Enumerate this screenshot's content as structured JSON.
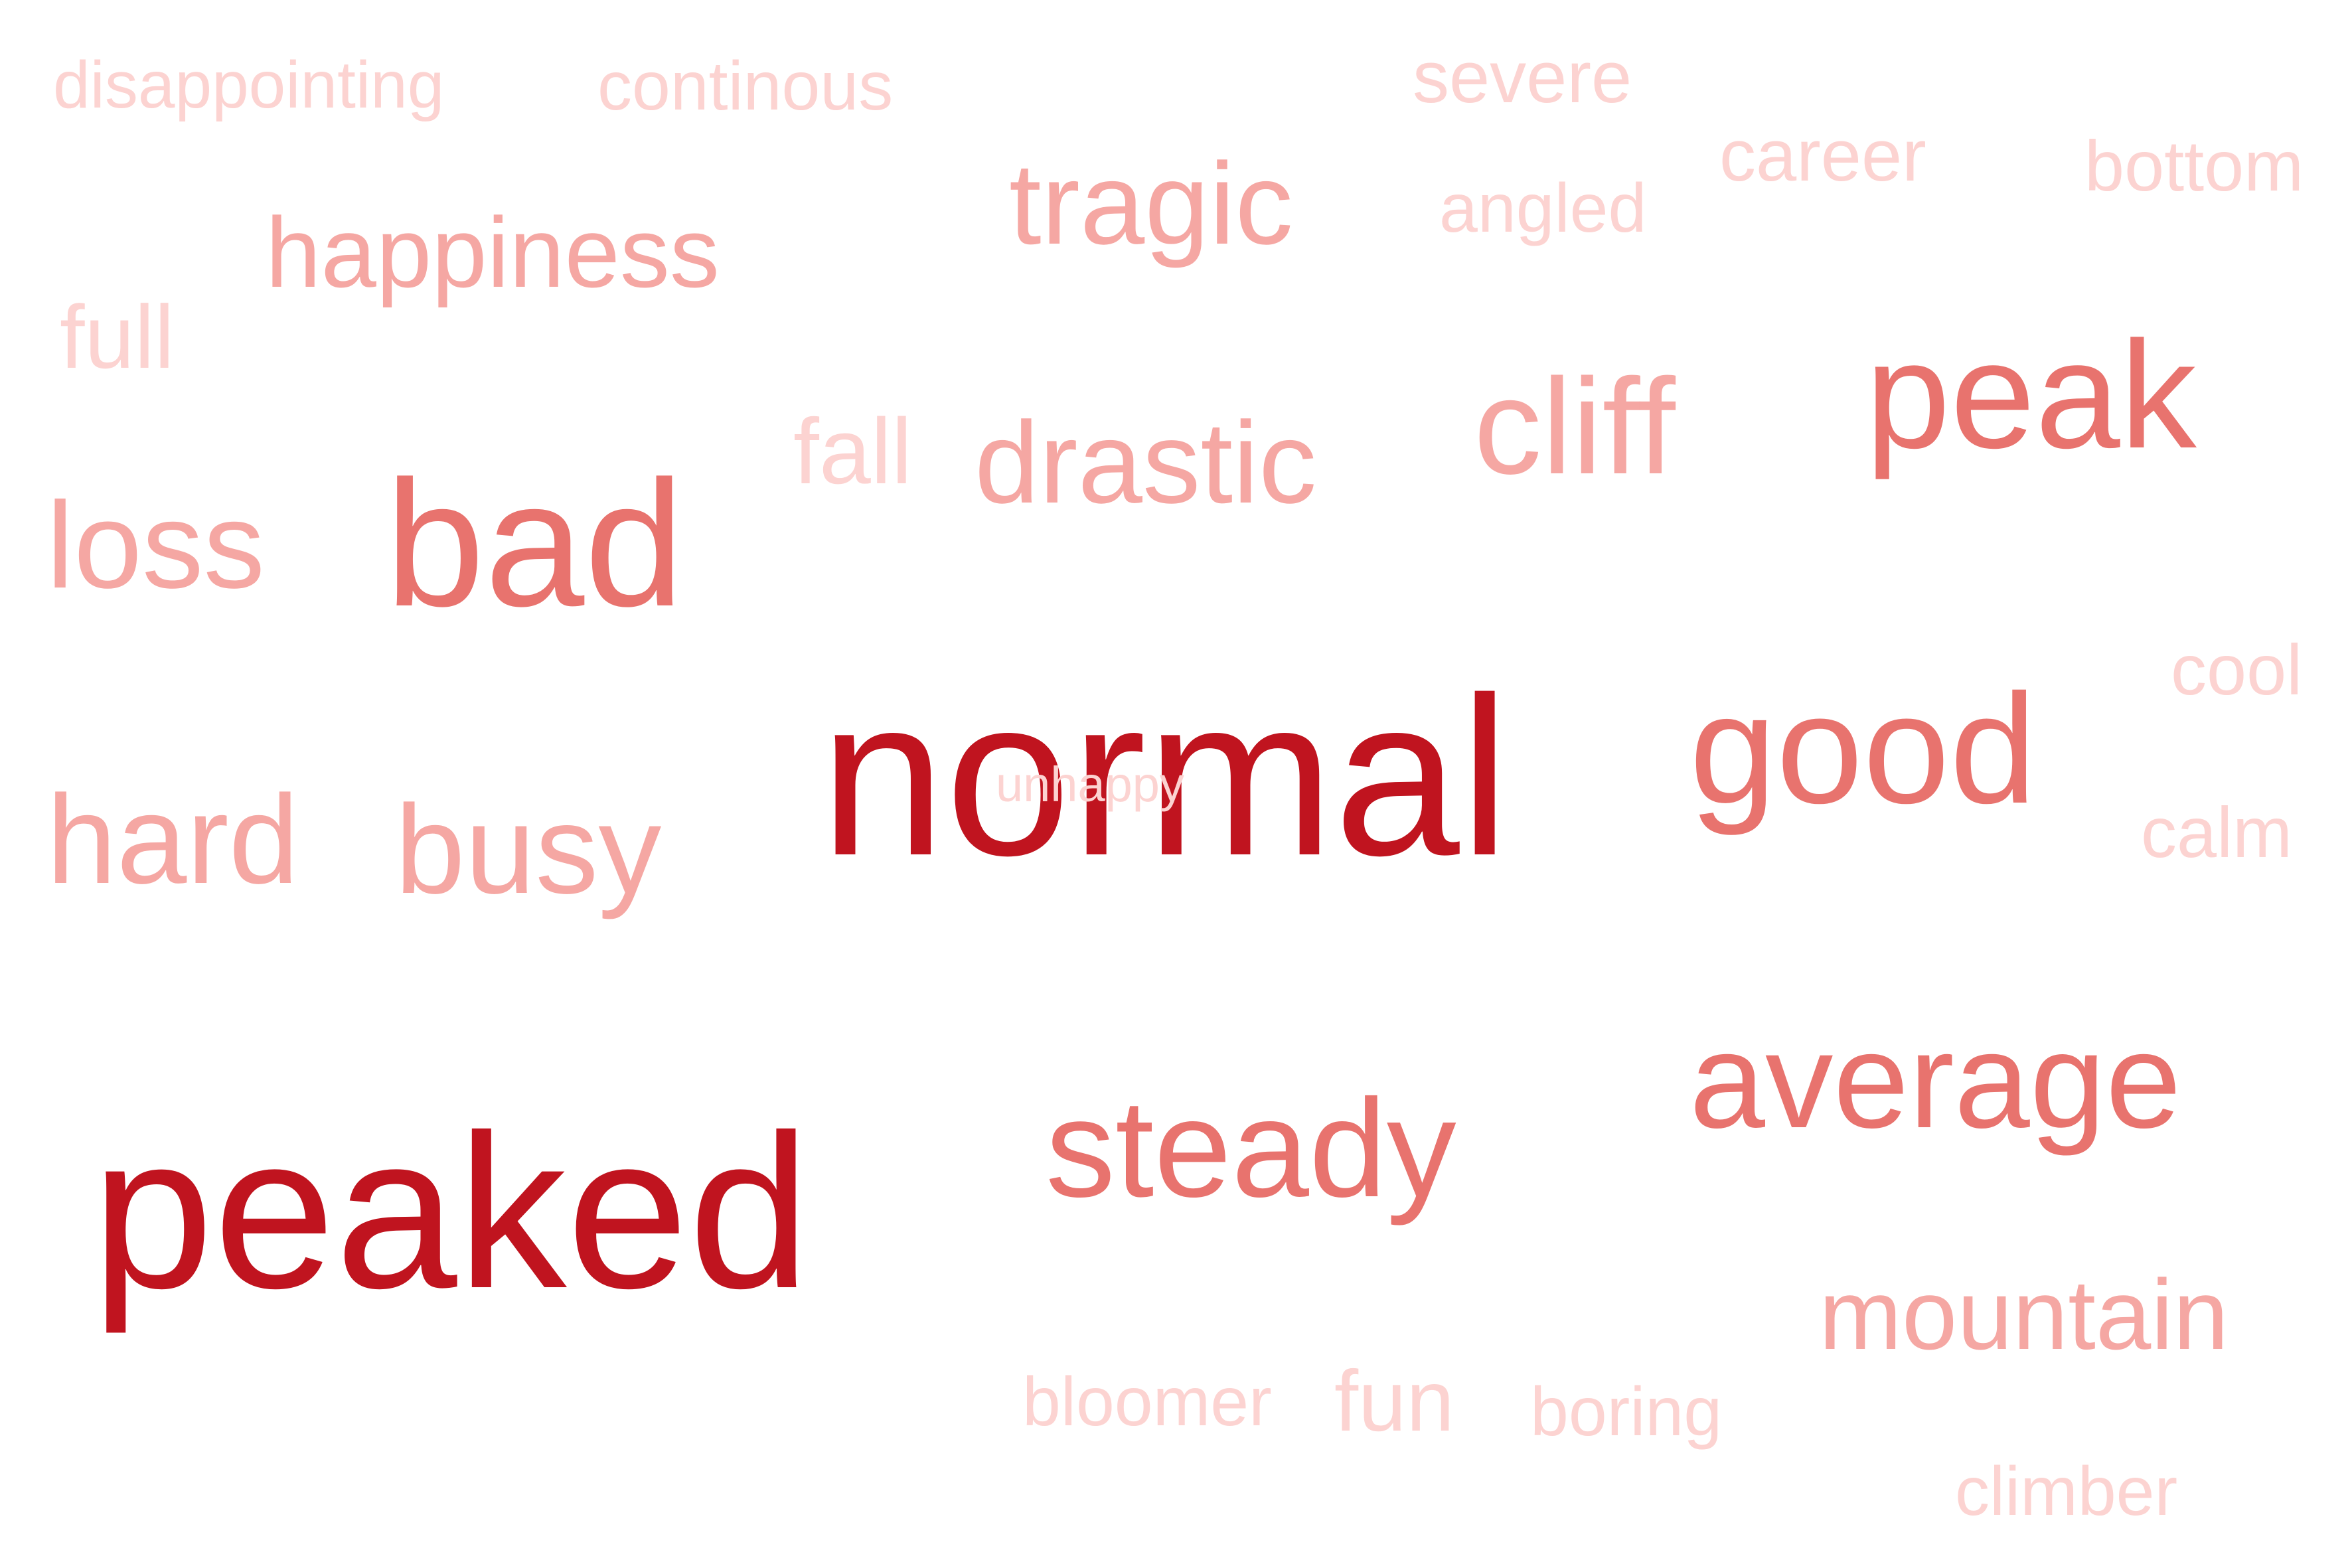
{
  "words": {
    "disappointing": "disappointing",
    "continous": "continous",
    "severe": "severe",
    "career": "career",
    "bottom": "bottom",
    "angled": "angled",
    "tragic": "tragic",
    "happiness": "happiness",
    "full": "full",
    "fall": "fall",
    "drastic": "drastic",
    "cliff": "cliff",
    "peak": "peak",
    "loss": "loss",
    "bad": "bad",
    "cool": "cool",
    "good": "good",
    "normal": "normal",
    "smudge": "unhappy",
    "calm": "calm",
    "hard": "hard",
    "busy": "busy",
    "average": "average",
    "steady": "steady",
    "peaked": "peaked",
    "mountain": "mountain",
    "bloomer": "bloomer",
    "fun": "fun",
    "boring": "boring",
    "climber": "climber"
  },
  "colors": {
    "dark": "#c0141f",
    "medium": "#e8736e",
    "soft": "#f5a7a3",
    "light": "#fcd3d1",
    "background": "#ffffff"
  }
}
